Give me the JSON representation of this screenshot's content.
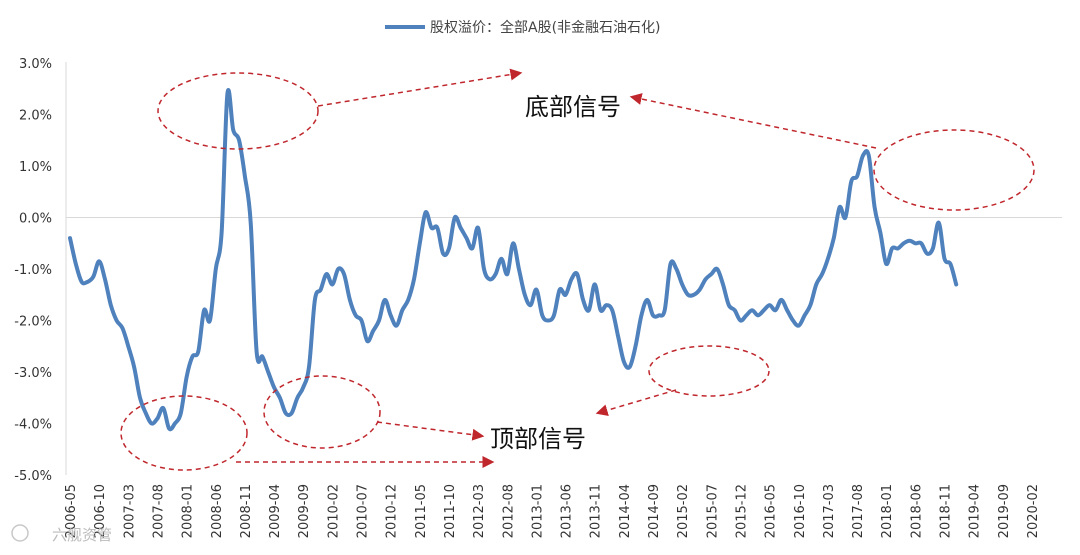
{
  "chart_data": {
    "type": "line",
    "title": "",
    "legend": {
      "position": "top-center"
    },
    "series": [
      {
        "name": "股权溢价：全部A股(非金融石油石化)",
        "color": "#4f81bd",
        "points": [
          [
            "2006-05",
            -0.4
          ],
          [
            "2006-06",
            -0.9
          ],
          [
            "2006-07",
            -1.25
          ],
          [
            "2006-08",
            -1.25
          ],
          [
            "2006-09",
            -1.15
          ],
          [
            "2006-10",
            -0.85
          ],
          [
            "2006-11",
            -1.2
          ],
          [
            "2006-12",
            -1.7
          ],
          [
            "2007-01",
            -2.0
          ],
          [
            "2007-02",
            -2.15
          ],
          [
            "2007-03",
            -2.5
          ],
          [
            "2007-04",
            -2.9
          ],
          [
            "2007-05",
            -3.5
          ],
          [
            "2007-06",
            -3.8
          ],
          [
            "2007-07",
            -4.0
          ],
          [
            "2007-08",
            -3.9
          ],
          [
            "2007-09",
            -3.7
          ],
          [
            "2007-10",
            -4.1
          ],
          [
            "2007-11",
            -4.0
          ],
          [
            "2007-12",
            -3.8
          ],
          [
            "2008-01",
            -3.1
          ],
          [
            "2008-02",
            -2.7
          ],
          [
            "2008-03",
            -2.6
          ],
          [
            "2008-04",
            -1.8
          ],
          [
            "2008-05",
            -2.0
          ],
          [
            "2008-06",
            -1.0
          ],
          [
            "2008-07",
            -0.3
          ],
          [
            "2008-08",
            2.4
          ],
          [
            "2008-09",
            1.7
          ],
          [
            "2008-10",
            1.5
          ],
          [
            "2008-11",
            0.8
          ],
          [
            "2008-12",
            -0.1
          ],
          [
            "2009-01",
            -2.6
          ],
          [
            "2009-02",
            -2.7
          ],
          [
            "2009-03",
            -3.0
          ],
          [
            "2009-04",
            -3.3
          ],
          [
            "2009-05",
            -3.5
          ],
          [
            "2009-06",
            -3.8
          ],
          [
            "2009-07",
            -3.8
          ],
          [
            "2009-08",
            -3.5
          ],
          [
            "2009-09",
            -3.3
          ],
          [
            "2009-10",
            -2.9
          ],
          [
            "2009-11",
            -1.6
          ],
          [
            "2009-12",
            -1.4
          ],
          [
            "2010-01",
            -1.1
          ],
          [
            "2010-02",
            -1.3
          ],
          [
            "2010-03",
            -1.0
          ],
          [
            "2010-04",
            -1.1
          ],
          [
            "2010-05",
            -1.6
          ],
          [
            "2010-06",
            -1.9
          ],
          [
            "2010-07",
            -2.0
          ],
          [
            "2010-08",
            -2.4
          ],
          [
            "2010-09",
            -2.2
          ],
          [
            "2010-10",
            -2.0
          ],
          [
            "2010-11",
            -1.6
          ],
          [
            "2010-12",
            -1.9
          ],
          [
            "2011-01",
            -2.1
          ],
          [
            "2011-02",
            -1.8
          ],
          [
            "2011-03",
            -1.6
          ],
          [
            "2011-04",
            -1.2
          ],
          [
            "2011-05",
            -0.5
          ],
          [
            "2011-06",
            0.1
          ],
          [
            "2011-07",
            -0.2
          ],
          [
            "2011-08",
            -0.2
          ],
          [
            "2011-09",
            -0.7
          ],
          [
            "2011-10",
            -0.6
          ],
          [
            "2011-11",
            0.0
          ],
          [
            "2011-12",
            -0.2
          ],
          [
            "2012-01",
            -0.4
          ],
          [
            "2012-02",
            -0.6
          ],
          [
            "2012-03",
            -0.2
          ],
          [
            "2012-04",
            -1.0
          ],
          [
            "2012-05",
            -1.2
          ],
          [
            "2012-06",
            -1.1
          ],
          [
            "2012-07",
            -0.8
          ],
          [
            "2012-08",
            -1.1
          ],
          [
            "2012-09",
            -0.5
          ],
          [
            "2012-10",
            -1.0
          ],
          [
            "2012-11",
            -1.5
          ],
          [
            "2012-12",
            -1.7
          ],
          [
            "2013-01",
            -1.4
          ],
          [
            "2013-02",
            -1.9
          ],
          [
            "2013-03",
            -2.0
          ],
          [
            "2013-04",
            -1.9
          ],
          [
            "2013-05",
            -1.4
          ],
          [
            "2013-06",
            -1.5
          ],
          [
            "2013-07",
            -1.2
          ],
          [
            "2013-08",
            -1.1
          ],
          [
            "2013-09",
            -1.6
          ],
          [
            "2013-10",
            -1.8
          ],
          [
            "2013-11",
            -1.3
          ],
          [
            "2013-12",
            -1.8
          ],
          [
            "2014-01",
            -1.7
          ],
          [
            "2014-02",
            -1.8
          ],
          [
            "2014-03",
            -2.3
          ],
          [
            "2014-04",
            -2.8
          ],
          [
            "2014-05",
            -2.9
          ],
          [
            "2014-06",
            -2.5
          ],
          [
            "2014-07",
            -1.9
          ],
          [
            "2014-08",
            -1.6
          ],
          [
            "2014-09",
            -1.9
          ],
          [
            "2014-10",
            -1.9
          ],
          [
            "2014-11",
            -1.8
          ],
          [
            "2014-12",
            -0.9
          ],
          [
            "2015-01",
            -1.0
          ],
          [
            "2015-02",
            -1.3
          ],
          [
            "2015-03",
            -1.5
          ],
          [
            "2015-04",
            -1.5
          ],
          [
            "2015-05",
            -1.4
          ],
          [
            "2015-06",
            -1.2
          ],
          [
            "2015-07",
            -1.1
          ],
          [
            "2015-08",
            -1.0
          ],
          [
            "2015-09",
            -1.3
          ],
          [
            "2015-10",
            -1.7
          ],
          [
            "2015-11",
            -1.8
          ],
          [
            "2015-12",
            -2.0
          ],
          [
            "2016-01",
            -1.9
          ],
          [
            "2016-02",
            -1.8
          ],
          [
            "2016-03",
            -1.9
          ],
          [
            "2016-04",
            -1.8
          ],
          [
            "2016-05",
            -1.7
          ],
          [
            "2016-06",
            -1.8
          ],
          [
            "2016-07",
            -1.6
          ],
          [
            "2016-08",
            -1.8
          ],
          [
            "2016-09",
            -2.0
          ],
          [
            "2016-10",
            -2.1
          ],
          [
            "2016-11",
            -1.9
          ],
          [
            "2016-12",
            -1.7
          ],
          [
            "2017-01",
            -1.3
          ],
          [
            "2017-02",
            -1.1
          ],
          [
            "2017-03",
            -0.8
          ],
          [
            "2017-04",
            -0.4
          ],
          [
            "2017-05",
            0.2
          ],
          [
            "2017-06",
            0.0
          ],
          [
            "2017-07",
            0.7
          ],
          [
            "2017-08",
            0.8
          ],
          [
            "2017-09",
            1.2
          ],
          [
            "2017-10",
            1.2
          ],
          [
            "2017-11",
            0.2
          ],
          [
            "2017-12",
            -0.3
          ],
          [
            "2018-01",
            -0.9
          ],
          [
            "2018-02",
            -0.6
          ],
          [
            "2018-03",
            -0.6
          ],
          [
            "2018-04",
            -0.5
          ],
          [
            "2018-05",
            -0.45
          ],
          [
            "2018-06",
            -0.5
          ],
          [
            "2018-07",
            -0.5
          ],
          [
            "2018-08",
            -0.7
          ],
          [
            "2018-09",
            -0.6
          ],
          [
            "2018-10",
            -0.1
          ],
          [
            "2018-11",
            -0.8
          ],
          [
            "2018-12",
            -0.9
          ],
          [
            "2019-01",
            -1.3
          ]
        ]
      }
    ],
    "x_tick_labels": [
      "2006-05",
      "2006-10",
      "2007-03",
      "2007-08",
      "2008-01",
      "2008-06",
      "2008-11",
      "2009-04",
      "2009-09",
      "2010-02",
      "2010-07",
      "2010-12",
      "2011-05",
      "2011-10",
      "2012-03",
      "2012-08",
      "2013-01",
      "2013-06",
      "2013-11",
      "2014-04",
      "2014-09",
      "2015-02",
      "2015-07",
      "2015-12",
      "2016-05",
      "2016-10",
      "2017-03",
      "2017-08",
      "2018-01",
      "2018-06",
      "2018-11",
      "2019-04",
      "2019-09",
      "2020-02"
    ],
    "y_ticks": [
      3.0,
      2.0,
      1.0,
      0.0,
      -1.0,
      -2.0,
      -3.0,
      -4.0,
      -5.0
    ],
    "y_tick_labels": [
      "3.0%",
      "2.0%",
      "1.0%",
      "0.0%",
      "-1.0%",
      "-2.0%",
      "-3.0%",
      "-4.0%",
      "-5.0%"
    ],
    "ylim": [
      -5.0,
      3.0
    ],
    "grid": false,
    "annotations": {
      "bottom_signal": "底部信号",
      "top_signal": "顶部信号"
    }
  },
  "watermark": "六舰资管"
}
